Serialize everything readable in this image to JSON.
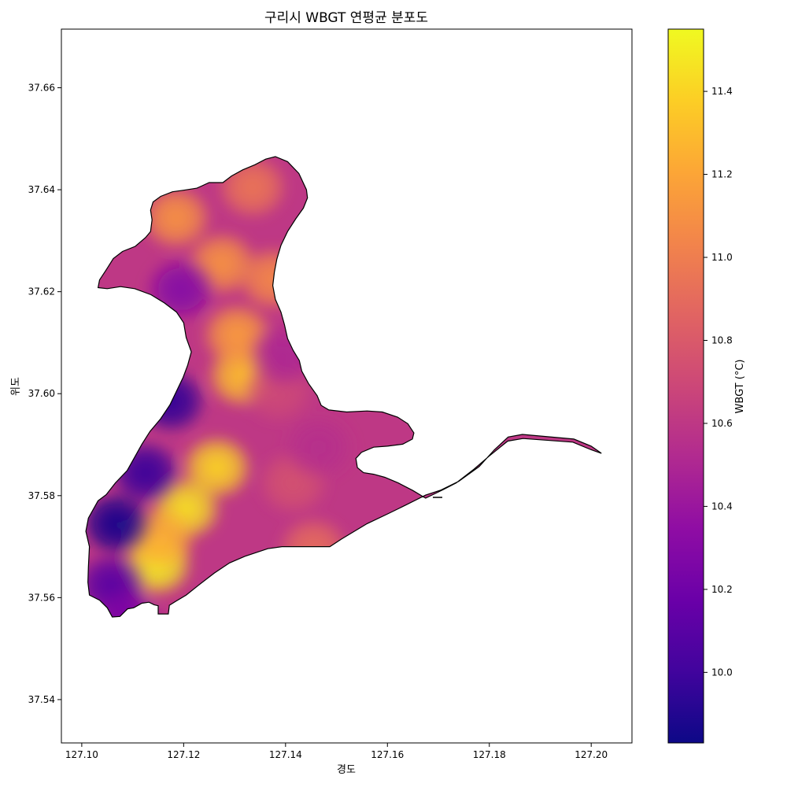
{
  "title": "구리시 WBGT 연평균 분포도",
  "xlabel": "경도",
  "ylabel": "위도",
  "colorbar": {
    "label": "WBGT (°C)",
    "colormap": "plasma",
    "range": [
      9.83,
      11.55
    ],
    "ticks": [
      "10.0",
      "10.2",
      "10.4",
      "10.6",
      "10.8",
      "11.0",
      "11.2",
      "11.4"
    ],
    "tick_values": [
      10.0,
      10.2,
      10.4,
      10.6,
      10.8,
      11.0,
      11.2,
      11.4
    ],
    "stops": [
      "#0d0887",
      "#41049d",
      "#6a00a8",
      "#8f0da4",
      "#b12a90",
      "#cc4778",
      "#e16462",
      "#f2844b",
      "#fca636",
      "#fcce25",
      "#f0f921"
    ]
  },
  "chart_data": {
    "type": "heatmap",
    "xlim": [
      127.096,
      127.208
    ],
    "ylim": [
      37.5315,
      37.6715
    ],
    "x_ticks": [
      "127.10",
      "127.12",
      "127.14",
      "127.16",
      "127.18",
      "127.20"
    ],
    "x_tick_values": [
      127.1,
      127.12,
      127.14,
      127.16,
      127.18,
      127.2
    ],
    "y_ticks": [
      "37.54",
      "37.56",
      "37.58",
      "37.60",
      "37.62",
      "37.64",
      "37.66"
    ],
    "y_tick_values": [
      37.54,
      37.56,
      37.58,
      37.6,
      37.62,
      37.64,
      37.66
    ],
    "base_value": 10.6,
    "hotspots": [
      {
        "lon": 127.1315,
        "lat": 37.6035,
        "value": 11.3
      },
      {
        "lon": 127.1305,
        "lat": 37.6115,
        "value": 11.15
      },
      {
        "lon": 127.1265,
        "lat": 37.5855,
        "value": 11.4
      },
      {
        "lon": 127.1205,
        "lat": 37.5775,
        "value": 11.45
      },
      {
        "lon": 127.1148,
        "lat": 37.5665,
        "value": 11.5
      },
      {
        "lon": 127.1155,
        "lat": 37.5715,
        "value": 11.25
      },
      {
        "lon": 127.1275,
        "lat": 37.6255,
        "value": 11.1
      },
      {
        "lon": 127.1335,
        "lat": 37.6405,
        "value": 10.95
      },
      {
        "lon": 127.1375,
        "lat": 37.6225,
        "value": 11.05
      },
      {
        "lon": 127.1185,
        "lat": 37.6345,
        "value": 11.1
      },
      {
        "lon": 127.1415,
        "lat": 37.5825,
        "value": 10.75
      },
      {
        "lon": 127.1455,
        "lat": 37.5695,
        "value": 10.9
      },
      {
        "lon": 127.1385,
        "lat": 37.6005,
        "value": 10.7
      },
      {
        "lon": 127.1465,
        "lat": 37.5895,
        "value": 10.55
      },
      {
        "lon": 127.1515,
        "lat": 37.6285,
        "value": 10.55
      },
      {
        "lon": 127.1395,
        "lat": 37.6075,
        "value": 10.5
      },
      {
        "lon": 127.1195,
        "lat": 37.6205,
        "value": 10.3
      },
      {
        "lon": 127.1175,
        "lat": 37.5985,
        "value": 9.95
      },
      {
        "lon": 127.1125,
        "lat": 37.5845,
        "value": 9.98
      },
      {
        "lon": 127.1068,
        "lat": 37.5745,
        "value": 9.86
      },
      {
        "lon": 127.1058,
        "lat": 37.5625,
        "value": 10.1
      },
      {
        "lon": 127.1085,
        "lat": 37.5555,
        "value": 10.25
      }
    ],
    "boundary": [
      [
        127.1015,
        37.5605
      ],
      [
        127.1035,
        37.5595
      ],
      [
        127.105,
        37.558
      ],
      [
        127.106,
        37.5562
      ],
      [
        127.1075,
        37.5563
      ],
      [
        127.109,
        37.5578
      ],
      [
        127.1102,
        37.558
      ],
      [
        127.1118,
        37.5589
      ],
      [
        127.1132,
        37.5591
      ],
      [
        127.1142,
        37.5586
      ],
      [
        127.115,
        37.5584
      ],
      [
        127.115,
        37.5568
      ],
      [
        127.117,
        37.5568
      ],
      [
        127.1172,
        37.5585
      ],
      [
        127.1185,
        37.5593
      ],
      [
        127.1205,
        37.5605
      ],
      [
        127.123,
        37.5625
      ],
      [
        127.126,
        37.5648
      ],
      [
        127.129,
        37.5668
      ],
      [
        127.132,
        37.5681
      ],
      [
        127.1365,
        37.5696
      ],
      [
        127.1393,
        37.57
      ],
      [
        127.146,
        37.57
      ],
      [
        127.1487,
        37.57
      ],
      [
        127.151,
        37.5715
      ],
      [
        127.156,
        37.5745
      ],
      [
        127.1602,
        37.5765
      ],
      [
        127.1635,
        37.5781
      ],
      [
        127.1675,
        37.5801
      ],
      [
        127.1705,
        37.5811
      ],
      [
        127.174,
        37.5828
      ],
      [
        127.178,
        37.5857
      ],
      [
        127.181,
        37.589
      ],
      [
        127.1837,
        37.5915
      ],
      [
        127.1865,
        37.592
      ],
      [
        127.1966,
        37.5911
      ],
      [
        127.2,
        37.5897
      ],
      [
        127.202,
        37.5883
      ],
      [
        127.2,
        37.589
      ],
      [
        127.1964,
        37.5905
      ],
      [
        127.1866,
        37.5912
      ],
      [
        127.1836,
        37.5907
      ],
      [
        127.18,
        37.5878
      ],
      [
        127.177,
        37.5852
      ],
      [
        127.1735,
        37.5825
      ],
      [
        127.171,
        37.5812
      ],
      [
        127.1675,
        37.5795
      ],
      [
        127.165,
        37.581
      ],
      [
        127.1621,
        37.5825
      ],
      [
        127.1595,
        37.5836
      ],
      [
        127.1573,
        37.5842
      ],
      [
        127.1553,
        37.5845
      ],
      [
        127.1541,
        37.5855
      ],
      [
        127.1538,
        37.5873
      ],
      [
        127.1549,
        37.5885
      ],
      [
        127.1573,
        37.5895
      ],
      [
        127.16,
        37.5897
      ],
      [
        127.163,
        37.5901
      ],
      [
        127.1649,
        37.5911
      ],
      [
        127.1652,
        37.5923
      ],
      [
        127.164,
        37.5941
      ],
      [
        127.162,
        37.5954
      ],
      [
        127.159,
        37.5964
      ],
      [
        127.156,
        37.5966
      ],
      [
        127.152,
        37.5964
      ],
      [
        127.1485,
        37.5968
      ],
      [
        127.147,
        37.5977
      ],
      [
        127.1462,
        37.5996
      ],
      [
        127.1445,
        37.602
      ],
      [
        127.1432,
        37.6044
      ],
      [
        127.1427,
        37.6065
      ],
      [
        127.1415,
        37.6085
      ],
      [
        127.1404,
        37.6108
      ],
      [
        127.1398,
        37.6135
      ],
      [
        127.1391,
        37.616
      ],
      [
        127.138,
        37.6185
      ],
      [
        127.1375,
        37.6212
      ],
      [
        127.1378,
        37.6238
      ],
      [
        127.1383,
        37.6264
      ],
      [
        127.1391,
        37.6291
      ],
      [
        127.1404,
        37.6318
      ],
      [
        127.142,
        37.6343
      ],
      [
        127.1435,
        37.6364
      ],
      [
        127.1443,
        37.6384
      ],
      [
        127.1441,
        37.64
      ],
      [
        127.1426,
        37.6432
      ],
      [
        127.1404,
        37.6455
      ],
      [
        127.138,
        37.6465
      ],
      [
        127.1361,
        37.646
      ],
      [
        127.134,
        37.6449
      ],
      [
        127.1316,
        37.6439
      ],
      [
        127.1294,
        37.6427
      ],
      [
        127.1277,
        37.6414
      ],
      [
        127.125,
        37.6414
      ],
      [
        127.1226,
        37.6403
      ],
      [
        127.12,
        37.6399
      ],
      [
        127.1178,
        37.6396
      ],
      [
        127.1155,
        37.6387
      ],
      [
        127.114,
        37.6376
      ],
      [
        127.1135,
        37.636
      ],
      [
        127.1138,
        37.6341
      ],
      [
        127.1135,
        37.6318
      ],
      [
        127.1125,
        37.6306
      ],
      [
        127.1105,
        37.6289
      ],
      [
        127.108,
        37.6279
      ],
      [
        127.1062,
        37.6265
      ],
      [
        127.1048,
        37.6243
      ],
      [
        127.1035,
        37.6223
      ],
      [
        127.1032,
        37.6208
      ],
      [
        127.105,
        37.6206
      ],
      [
        127.1076,
        37.621
      ],
      [
        127.1104,
        37.6206
      ],
      [
        127.1136,
        37.6194
      ],
      [
        127.1162,
        37.6178
      ],
      [
        127.1186,
        37.616
      ],
      [
        127.12,
        37.6139
      ],
      [
        127.1205,
        37.611
      ],
      [
        127.1215,
        37.6082
      ],
      [
        127.1208,
        37.6056
      ],
      [
        127.1199,
        37.6032
      ],
      [
        127.1186,
        37.6005
      ],
      [
        127.1173,
        37.5978
      ],
      [
        127.1155,
        37.5951
      ],
      [
        127.1134,
        37.5926
      ],
      [
        127.1118,
        37.5901
      ],
      [
        127.1103,
        37.5874
      ],
      [
        127.1089,
        37.5849
      ],
      [
        127.1066,
        37.5825
      ],
      [
        127.1048,
        37.5802
      ],
      [
        127.1032,
        37.579
      ],
      [
        127.1013,
        37.5756
      ],
      [
        127.1008,
        37.573
      ],
      [
        127.1015,
        37.57
      ],
      [
        127.1013,
        37.566
      ],
      [
        127.1012,
        37.563
      ]
    ]
  }
}
